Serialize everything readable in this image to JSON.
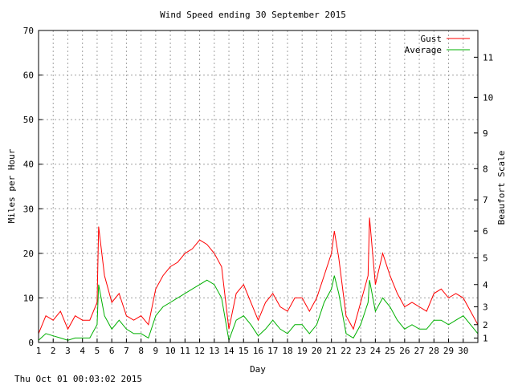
{
  "chart_data": {
    "type": "line",
    "title": "Wind Speed ending 30 September 2015",
    "xlabel": "Day",
    "ylabel": "Miles per Hour",
    "y2label": "Beaufort Scale",
    "timestamp": "Thu Oct 01 00:03:02 2015",
    "xlim": [
      1,
      31
    ],
    "ylim": [
      0,
      70
    ],
    "x_ticks": [
      "1",
      "2",
      "3",
      "4",
      "5",
      "6",
      "7",
      "8",
      "9",
      "10",
      "11",
      "12",
      "13",
      "14",
      "15",
      "16",
      "17",
      "18",
      "19",
      "20",
      "21",
      "22",
      "23",
      "24",
      "25",
      "26",
      "27",
      "28",
      "29",
      "30"
    ],
    "y_ticks": [
      "0",
      "10",
      "20",
      "30",
      "40",
      "50",
      "60",
      "70"
    ],
    "beaufort_ticks": [
      {
        "label": "1",
        "mph": 1
      },
      {
        "label": "2",
        "mph": 4
      },
      {
        "label": "3",
        "mph": 8
      },
      {
        "label": "4",
        "mph": 13
      },
      {
        "label": "5",
        "mph": 19
      },
      {
        "label": "6",
        "mph": 25
      },
      {
        "label": "7",
        "mph": 32
      },
      {
        "label": "8",
        "mph": 39
      },
      {
        "label": "9",
        "mph": 47
      },
      {
        "label": "10",
        "mph": 55
      },
      {
        "label": "11",
        "mph": 64
      }
    ],
    "grid": true,
    "legend_position": "top-right",
    "series": [
      {
        "name": "Gust",
        "color": "#ff0000",
        "x": [
          1,
          1.5,
          2,
          2.5,
          3,
          3.5,
          4,
          4.5,
          5,
          5.1,
          5.5,
          6,
          6.5,
          7,
          7.5,
          8,
          8.5,
          9,
          9.5,
          10,
          10.5,
          11,
          11.5,
          12,
          12.5,
          13,
          13.5,
          14,
          14.5,
          15,
          15.5,
          16,
          16.5,
          17,
          17.5,
          18,
          18.5,
          19,
          19.5,
          20,
          20.5,
          21,
          21.2,
          21.5,
          22,
          22.5,
          23,
          23.5,
          23.6,
          24,
          24.5,
          25,
          25.5,
          26,
          26.5,
          27,
          27.5,
          28,
          28.5,
          29,
          29.5,
          30,
          30.5,
          31
        ],
        "y": [
          2,
          6,
          5,
          7,
          3,
          6,
          5,
          5,
          9,
          26,
          15,
          9,
          11,
          6,
          5,
          6,
          4,
          12,
          15,
          17,
          18,
          20,
          21,
          23,
          22,
          20,
          17,
          3,
          11,
          13,
          9,
          5,
          9,
          11,
          8,
          7,
          10,
          10,
          7,
          10,
          15,
          20,
          25,
          19,
          6,
          3,
          9,
          15,
          28,
          13,
          20,
          15,
          11,
          8,
          9,
          8,
          7,
          11,
          12,
          10,
          11,
          10,
          7,
          4
        ]
      },
      {
        "name": "Average",
        "color": "#00b000",
        "x": [
          1,
          1.5,
          2,
          2.5,
          3,
          3.5,
          4,
          4.5,
          5,
          5.1,
          5.5,
          6,
          6.5,
          7,
          7.5,
          8,
          8.5,
          9,
          9.5,
          10,
          10.5,
          11,
          11.5,
          12,
          12.5,
          13,
          13.5,
          14,
          14.5,
          15,
          15.5,
          16,
          16.5,
          17,
          17.5,
          18,
          18.5,
          19,
          19.5,
          20,
          20.5,
          21,
          21.2,
          21.5,
          22,
          22.5,
          23,
          23.5,
          23.6,
          24,
          24.5,
          25,
          25.5,
          26,
          26.5,
          27,
          27.5,
          28,
          28.5,
          29,
          29.5,
          30,
          30.5,
          31
        ],
        "y": [
          0.5,
          2,
          1.5,
          1,
          0.5,
          1,
          1,
          1,
          4,
          13,
          6,
          3,
          5,
          3,
          2,
          2,
          1,
          6,
          8,
          9,
          10,
          11,
          12,
          13,
          14,
          13,
          10,
          0.5,
          5,
          6,
          4,
          1.5,
          3,
          5,
          3,
          2,
          4,
          4,
          2,
          4,
          9,
          12,
          15,
          11,
          2,
          1,
          4,
          9,
          14,
          7,
          10,
          8,
          5,
          3,
          4,
          3,
          3,
          5,
          5,
          4,
          5,
          6,
          4,
          2
        ]
      }
    ]
  }
}
